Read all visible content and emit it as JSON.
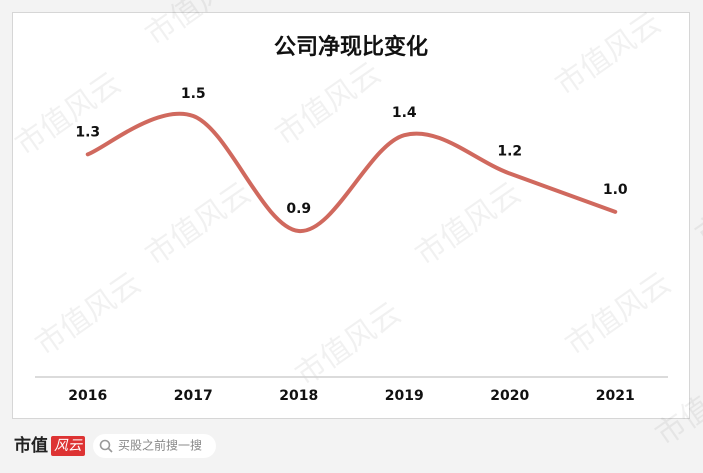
{
  "chart_data": {
    "type": "line",
    "title": "公司净现比变化",
    "categories": [
      "2016",
      "2017",
      "2018",
      "2019",
      "2020",
      "2021"
    ],
    "values": [
      1.3,
      1.5,
      0.9,
      1.4,
      1.2,
      1.0
    ],
    "value_labels": [
      "1.3",
      "1.5",
      "0.9",
      "1.4",
      "1.2",
      "1.0"
    ],
    "color": "#d0695e"
  },
  "watermark": "市值风云",
  "footer": {
    "brand": "市值",
    "brand_badge": "风云",
    "search": "买股之前搜一搜"
  }
}
